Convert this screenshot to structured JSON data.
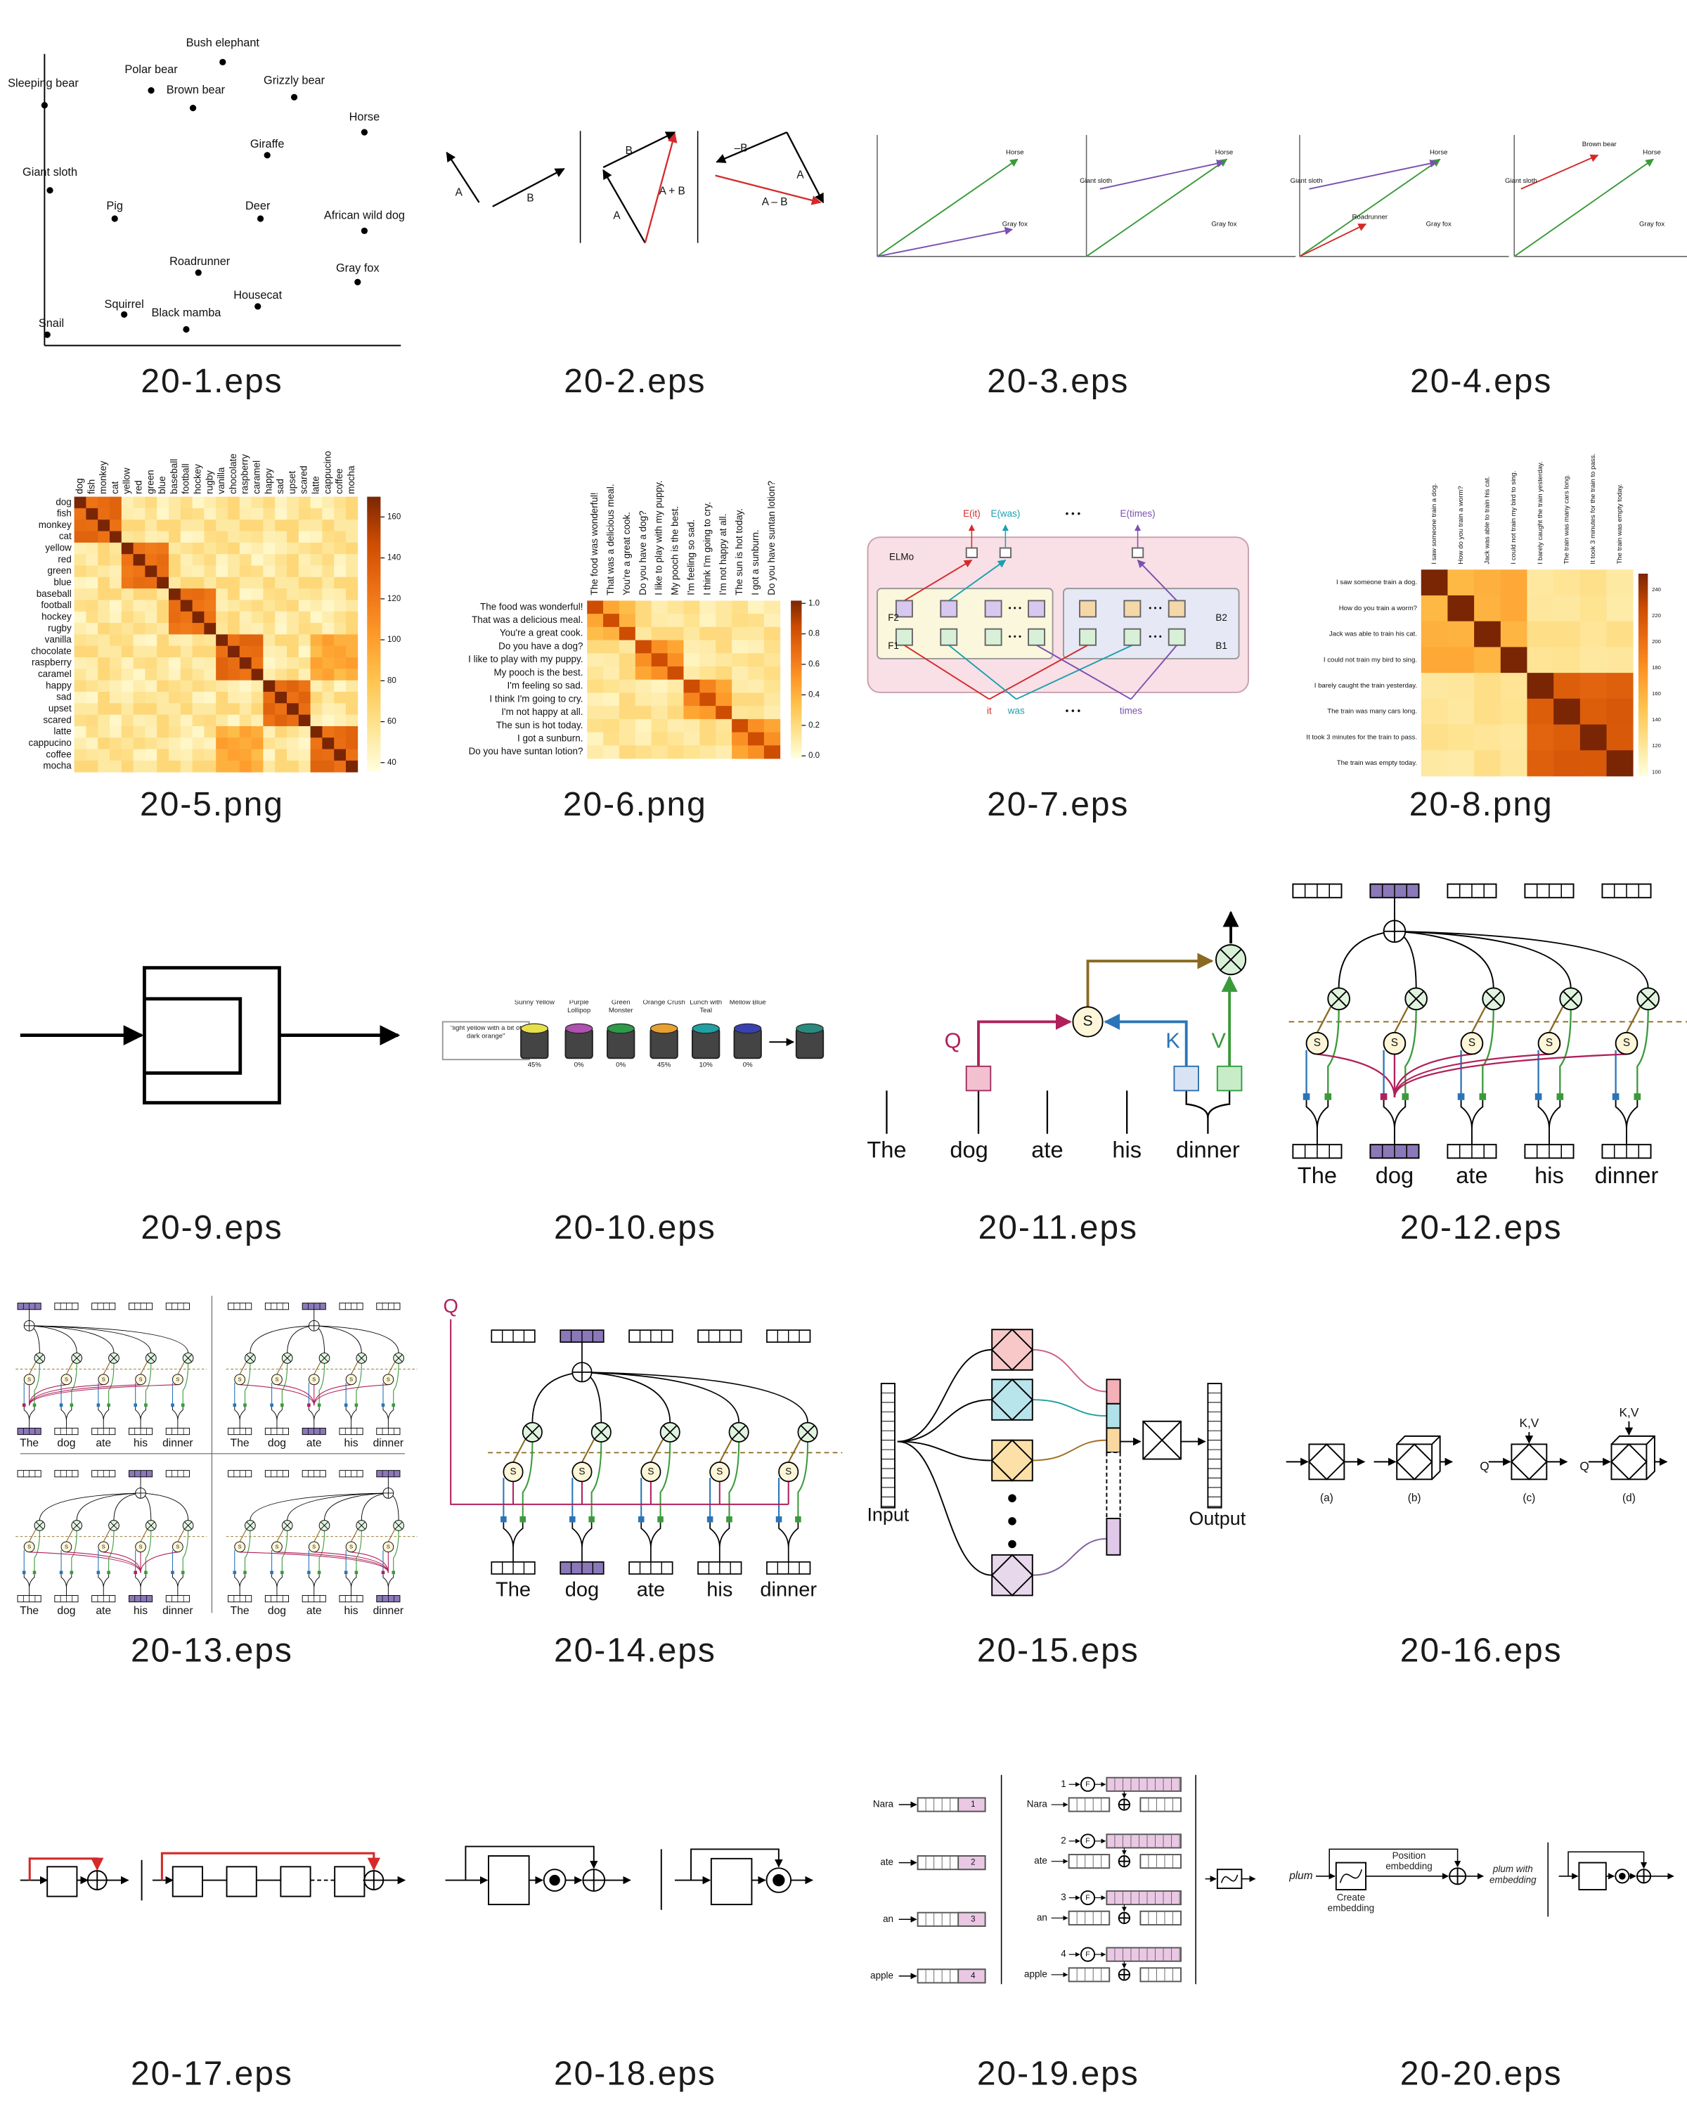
{
  "thumbnails": [
    {
      "filename": "20-1.eps",
      "points": [
        "Sleeping bear",
        "Polar bear",
        "Bush elephant",
        "Brown bear",
        "Grizzly bear",
        "Horse",
        "Giraffe",
        "Giant sloth",
        "Pig",
        "Deer",
        "African wild dog",
        "Roadrunner",
        "Gray fox",
        "Housecat",
        "Squirrel",
        "Black mamba",
        "Snail"
      ]
    },
    {
      "filename": "20-2.eps",
      "labels": [
        "A",
        "B",
        "B",
        "A",
        "A + B",
        "–B",
        "A",
        "A – B"
      ]
    },
    {
      "filename": "20-3.eps",
      "labels": [
        "Horse",
        "Gray fox",
        "Giant sloth",
        "Horse",
        "Gray fox"
      ]
    },
    {
      "filename": "20-4.eps",
      "labels": [
        "Giant sloth",
        "Roadrunner",
        "Horse",
        "Gray fox",
        "Giant sloth",
        "Brown bear",
        "Horse",
        "Gray fox"
      ]
    },
    {
      "filename": "20-5.png",
      "words": [
        "dog",
        "fish",
        "monkey",
        "cat",
        "yellow",
        "red",
        "green",
        "blue",
        "baseball",
        "football",
        "hockey",
        "rugby",
        "vanilla",
        "chocolate",
        "raspberry",
        "caramel",
        "happy",
        "sad",
        "upset",
        "scared",
        "latte",
        "cappucino",
        "coffee",
        "mocha"
      ],
      "colorbar": [
        160,
        140,
        120,
        100,
        80,
        60,
        40
      ]
    },
    {
      "filename": "20-6.png",
      "sentences": [
        "The food was wonderful!",
        "That was a delicious meal.",
        "You're a great cook.",
        "Do you have a dog?",
        "I like to play with my puppy.",
        "My pooch is the best.",
        "I'm feeling so sad.",
        "I think I'm going to cry.",
        "I'm not happy at all.",
        "The sun is hot today.",
        "I got a sunburn.",
        "Do you have suntan lotion?"
      ],
      "colorbar": [
        "1.0",
        "0.8",
        "0.6",
        "0.4",
        "0.2",
        "0.0"
      ]
    },
    {
      "filename": "20-7.eps",
      "title": "ELMo",
      "outputs": [
        "E(it)",
        "E(was)",
        "E(times)"
      ],
      "inputs": [
        "it",
        "was",
        "times"
      ],
      "layers": [
        "F2",
        "F1",
        "B2",
        "B1"
      ],
      "ellipsis": "• • •"
    },
    {
      "filename": "20-8.png",
      "sentences": [
        "I saw someone train a dog.",
        "How do you train a worm?",
        "Jack was able to train his cat.",
        "I could not train my bird to sing.",
        "I barely caught the train yesterday.",
        "The train was many cars long.",
        "It took 3 minutes for the train to pass.",
        "The train was empty today."
      ],
      "colorbar": [
        240,
        220,
        200,
        180,
        160,
        140,
        120,
        100
      ]
    },
    {
      "filename": "20-9.eps"
    },
    {
      "filename": "20-10.eps",
      "prompt": "\"light yellow with a bit of dark orange\"",
      "paints": [
        {
          "name": "Sunny Yellow",
          "share": "45%"
        },
        {
          "name": "Purple Lollipop",
          "share": "0%"
        },
        {
          "name": "Green Monster",
          "share": "0%"
        },
        {
          "name": "Orange Crush",
          "share": "45%"
        },
        {
          "name": "Lunch with Teal",
          "share": "10%"
        },
        {
          "name": "Mellow Blue",
          "share": "0%"
        }
      ]
    },
    {
      "filename": "20-11.eps",
      "words": [
        "The",
        "dog",
        "ate",
        "his",
        "dinner"
      ],
      "q": "Q",
      "k": "K",
      "v": "V",
      "s": "S"
    },
    {
      "filename": "20-12.eps",
      "words": [
        "The",
        "dog",
        "ate",
        "his",
        "dinner"
      ],
      "s": "S"
    },
    {
      "filename": "20-13.eps",
      "words": [
        "The",
        "dog",
        "ate",
        "his",
        "dinner"
      ],
      "s": "S"
    },
    {
      "filename": "20-14.eps",
      "words": [
        "The",
        "dog",
        "ate",
        "his",
        "dinner"
      ],
      "q": "Q",
      "s": "S"
    },
    {
      "filename": "20-15.eps",
      "input": "Input",
      "output": "Output"
    },
    {
      "filename": "20-16.eps",
      "captions": [
        "(a)",
        "(b)",
        "(c)",
        "(d)"
      ],
      "kv": "K,V",
      "q": "Q"
    },
    {
      "filename": "20-17.eps"
    },
    {
      "filename": "20-18.eps"
    },
    {
      "filename": "20-19.eps",
      "words": [
        "Nara",
        "ate",
        "an",
        "apple"
      ],
      "positions": [
        "1",
        "2",
        "3",
        "4"
      ],
      "f": "F"
    },
    {
      "filename": "20-20.eps",
      "input": "plum",
      "position": "Position embedding",
      "create": "Create embedding",
      "output": "plum with embedding"
    }
  ]
}
